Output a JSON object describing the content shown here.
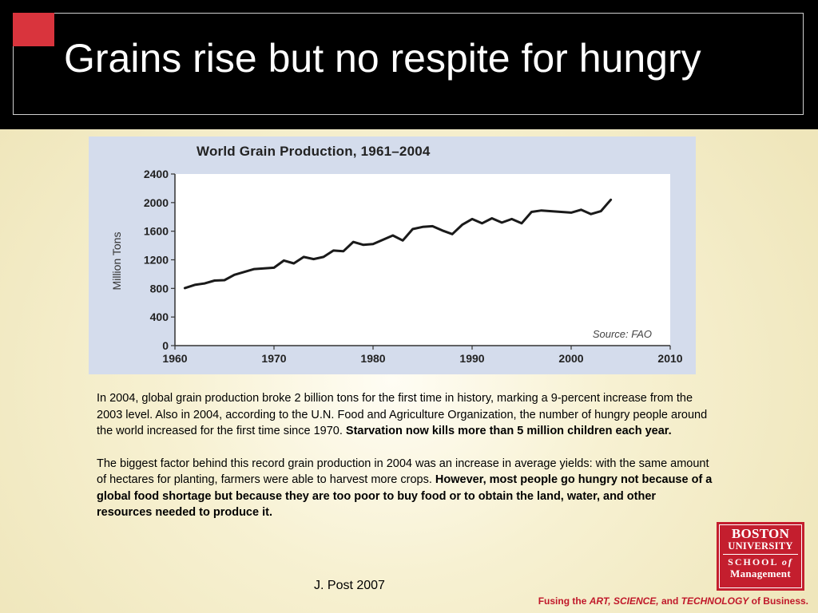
{
  "slide": {
    "title": "Grains rise but no respite for hungry",
    "accent_color": "#d9343d"
  },
  "chart_data": {
    "type": "line",
    "title": "World Grain Production, 1961–2004",
    "ylabel": "Million Tons",
    "xlabel": "",
    "xlim": [
      1960,
      2010
    ],
    "ylim": [
      0,
      2400
    ],
    "x_ticks": [
      1960,
      1970,
      1980,
      1990,
      2000,
      2010
    ],
    "y_ticks": [
      0,
      400,
      800,
      1200,
      1600,
      2000,
      2400
    ],
    "grid": false,
    "annotation": "Source: FAO",
    "series": [
      {
        "x": [
          1961,
          1962,
          1963,
          1964,
          1965,
          1966,
          1967,
          1968,
          1969,
          1970,
          1971,
          1972,
          1973,
          1974,
          1975,
          1976,
          1977,
          1978,
          1979,
          1980,
          1981,
          1982,
          1983,
          1984,
          1985,
          1986,
          1987,
          1988,
          1989,
          1990,
          1991,
          1992,
          1993,
          1994,
          1995,
          1996,
          1997,
          1998,
          1999,
          2000,
          2001,
          2002,
          2003,
          2004
        ],
        "values": [
          805,
          850,
          870,
          910,
          915,
          990,
          1030,
          1070,
          1080,
          1090,
          1190,
          1150,
          1240,
          1210,
          1240,
          1330,
          1320,
          1450,
          1410,
          1420,
          1480,
          1540,
          1470,
          1630,
          1660,
          1670,
          1610,
          1560,
          1690,
          1770,
          1710,
          1780,
          1720,
          1770,
          1710,
          1870,
          1890,
          1880,
          1870,
          1860,
          1900,
          1840,
          1880,
          2040
        ]
      }
    ]
  },
  "body": {
    "p1_text": "In 2004, global grain production broke 2 billion tons for the first time in history, marking a 9-percent increase from the 2003 level. Also in 2004, according to the U.N. Food and Agriculture Organization, the number of hungry people around the world increased for the first time since 1970. ",
    "p1_bold": "Starvation now kills more than 5 million children each year.",
    "p2_text": "The biggest factor behind this record grain production in 2004 was an increase in average yields: with the same amount of hectares for planting, farmers were able to harvest more crops. ",
    "p2_bold": "However, most people go hungry not because of a global food shortage but because they are too poor to buy food or to obtain the land, water, and other resources needed to produce it."
  },
  "footer": {
    "author": "J. Post 2007",
    "tagline_pre": "Fusing the ",
    "tagline_art": "ART, SCIENCE,",
    "tagline_mid": " and ",
    "tagline_tech": "TECHNOLOGY",
    "tagline_post": " of Business.",
    "brand_color": "#c41e2e"
  },
  "logo": {
    "line1": "BOSTON",
    "line2": "UNIVERSITY",
    "line3_a": "SCHOOL",
    "line3_b": "of",
    "line4": "Management"
  }
}
